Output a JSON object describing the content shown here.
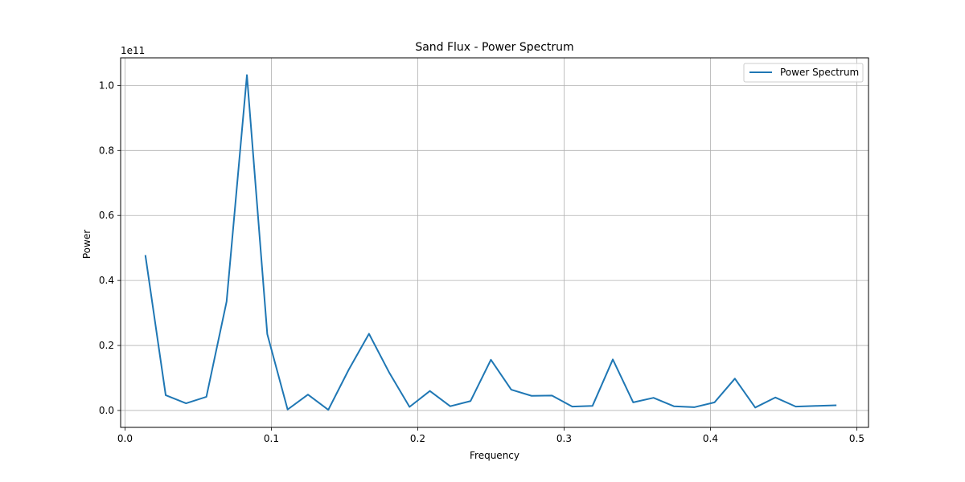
{
  "chart_data": {
    "type": "line",
    "title": "Sand Flux - Power Spectrum",
    "xlabel": "Frequency",
    "ylabel": "Power",
    "y_offset_label": "1e11",
    "xlim": [
      -0.003,
      0.508
    ],
    "ylim": [
      -0.052,
      1.085
    ],
    "y_scale_factor": 100000000000.0,
    "x_ticks": [
      0.0,
      0.1,
      0.2,
      0.3,
      0.4,
      0.5
    ],
    "x_tick_labels": [
      "0.0",
      "0.1",
      "0.2",
      "0.3",
      "0.4",
      "0.5"
    ],
    "y_ticks": [
      0.0,
      0.2,
      0.4,
      0.6,
      0.8,
      1.0
    ],
    "y_tick_labels": [
      "0.0",
      "0.2",
      "0.4",
      "0.6",
      "0.8",
      "1.0"
    ],
    "grid": true,
    "legend_position": "top-right",
    "series": [
      {
        "name": "Power Spectrum",
        "color": "#1f77b4",
        "x": [
          0.0139,
          0.0278,
          0.0417,
          0.0556,
          0.0694,
          0.0833,
          0.0972,
          0.1111,
          0.125,
          0.1389,
          0.1528,
          0.1667,
          0.1806,
          0.1944,
          0.2083,
          0.2222,
          0.2361,
          0.25,
          0.2639,
          0.2778,
          0.2917,
          0.3056,
          0.3194,
          0.3333,
          0.3472,
          0.3611,
          0.375,
          0.3889,
          0.4028,
          0.4167,
          0.4306,
          0.4444,
          0.4583,
          0.4722,
          0.4861
        ],
        "y": [
          0.478,
          0.047,
          0.022,
          0.042,
          0.335,
          1.032,
          0.235,
          0.003,
          0.049,
          0.002,
          0.125,
          0.236,
          0.116,
          0.011,
          0.06,
          0.013,
          0.029,
          0.156,
          0.064,
          0.045,
          0.046,
          0.012,
          0.014,
          0.157,
          0.025,
          0.039,
          0.013,
          0.01,
          0.025,
          0.098,
          0.009,
          0.04,
          0.012,
          0.014,
          0.016
        ]
      }
    ]
  }
}
